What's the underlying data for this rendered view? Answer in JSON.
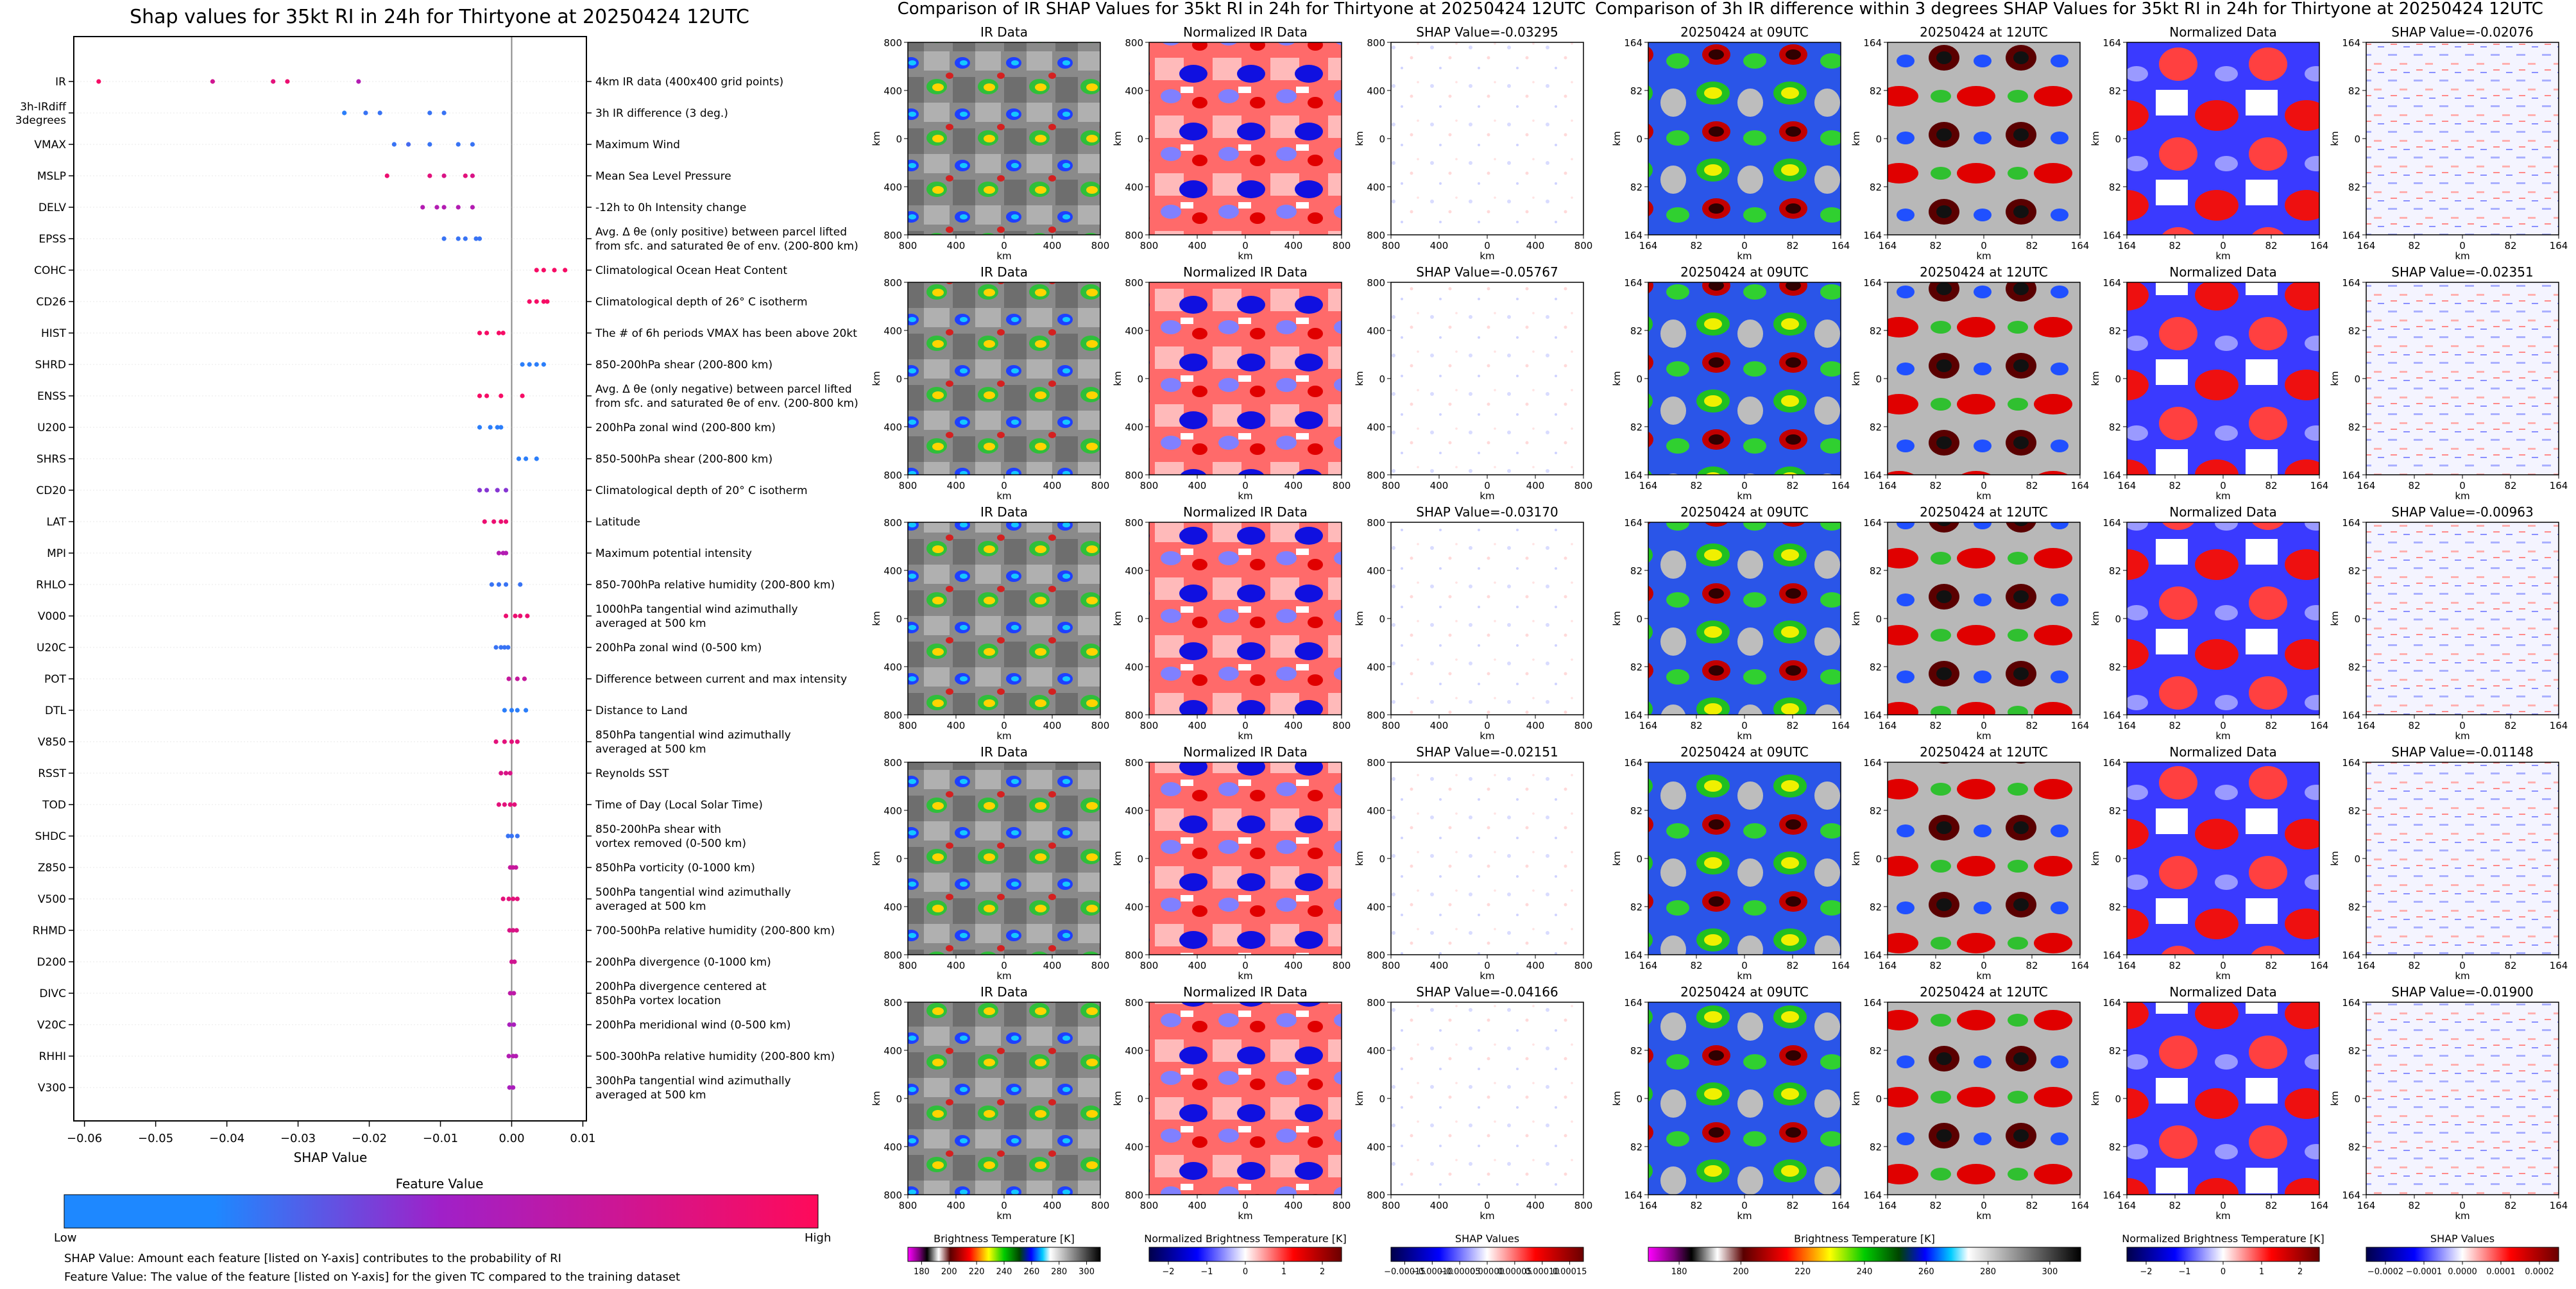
{
  "shap_panel": {
    "title": "Shap values for 35kt RI in 24h for Thirtyone at 20250424 12UTC",
    "xlabel": "SHAP Value",
    "xticks": [
      "−0.06",
      "−0.05",
      "−0.04",
      "−0.03",
      "−0.02",
      "−0.01",
      "0.00",
      "0.01"
    ],
    "colorbar": {
      "title": "Feature Value",
      "low": "Low",
      "high": "High"
    },
    "footnote1": "SHAP Value: Amount each feature [listed on Y-axis] contributes to the probability of RI",
    "footnote2": "Feature Value: The value of the feature [listed on Y-axis] for the given TC compared to the training dataset"
  },
  "ir_section": {
    "title": "Comparison of IR SHAP Values for 35kt RI in 24h for Thirtyone at 20250424 12UTC",
    "col_titles": [
      "IR Data",
      "Normalized IR Data"
    ],
    "shap_titles": [
      "SHAP Value=-0.03295",
      "SHAP Value=-0.05767",
      "SHAP Value=-0.03170",
      "SHAP Value=-0.02151",
      "SHAP Value=-0.04166"
    ],
    "yticks": [
      "800",
      "400",
      "0",
      "400",
      "800"
    ],
    "xticks": [
      "800",
      "400",
      "0",
      "400",
      "800"
    ],
    "axis_label": "km",
    "colorbars": [
      {
        "label": "Brightness Temperature [K]",
        "ticks": [
          "180",
          "200",
          "220",
          "240",
          "260",
          "280",
          "300"
        ]
      },
      {
        "label": "Normalized Brightness Temperature [K]",
        "ticks": [
          "−2",
          "−1",
          "0",
          "1",
          "2"
        ]
      },
      {
        "label": "SHAP Values",
        "ticks": [
          "−0.00015",
          "−0.00010",
          "−0.00005",
          "0.00000",
          "0.00005",
          "0.00010",
          "0.00015"
        ]
      }
    ]
  },
  "diff_section": {
    "title": "Comparison of 3h IR difference within 3 degrees SHAP Values for 35kt RI in 24h for Thirtyone at 20250424 12UTC",
    "col_titles": [
      "20250424 at 09UTC",
      "20250424 at 12UTC",
      "Normalized Data"
    ],
    "shap_titles": [
      "SHAP Value=-0.02076",
      "SHAP Value=-0.02351",
      "SHAP Value=-0.00963",
      "SHAP Value=-0.01148",
      "SHAP Value=-0.01900"
    ],
    "yticks": [
      "164",
      "82",
      "0",
      "82",
      "164"
    ],
    "xticks": [
      "164",
      "82",
      "0",
      "82",
      "164"
    ],
    "axis_label": "km",
    "colorbars": [
      {
        "label": "Brightness Temperature [K]",
        "ticks": [
          "180",
          "200",
          "220",
          "240",
          "260",
          "280",
          "300"
        ]
      },
      {
        "label": "Normalized Brightness Temperature [K]",
        "ticks": [
          "−2",
          "−1",
          "0",
          "1",
          "2"
        ]
      },
      {
        "label": "SHAP Values",
        "ticks": [
          "−0.0002",
          "−0.0001",
          "0.0000",
          "0.0001",
          "0.0002"
        ]
      }
    ]
  },
  "colors": {
    "low": "#1e88ff",
    "high": "#ff0a5a",
    "mid": "#a020c8",
    "zero_line": "#888888"
  },
  "chart_data": {
    "type": "scatter",
    "title": "Shap values for 35kt RI in 24h for Thirtyone at 20250424 12UTC",
    "xlabel": "SHAP Value",
    "ylabel": "",
    "xlim": [
      -0.0615,
      0.0105
    ],
    "features": [
      {
        "code": "IR",
        "desc": [
          "4km IR data (400x400 grid points)"
        ],
        "points": [
          [
            -0.058,
            0.95
          ],
          [
            -0.042,
            0.75
          ],
          [
            -0.0335,
            0.85
          ],
          [
            -0.0315,
            0.9
          ],
          [
            -0.0215,
            0.6
          ]
        ]
      },
      {
        "code": [
          "3h-IRdiff",
          "3degrees"
        ],
        "desc": [
          "3h IR difference (3 deg.)"
        ],
        "points": [
          [
            -0.0235,
            0.05
          ],
          [
            -0.0205,
            0.1
          ],
          [
            -0.0185,
            0.1
          ],
          [
            -0.0115,
            0.1
          ],
          [
            -0.0095,
            0.1
          ]
        ]
      },
      {
        "code": "VMAX",
        "desc": [
          "Maximum Wind"
        ],
        "points": [
          [
            -0.0165,
            0.1
          ],
          [
            -0.0145,
            0.15
          ],
          [
            -0.0115,
            0.1
          ],
          [
            -0.0075,
            0.1
          ],
          [
            -0.0055,
            0.1
          ]
        ]
      },
      {
        "code": "MSLP",
        "desc": [
          "Mean Sea Level Pressure"
        ],
        "points": [
          [
            -0.0175,
            0.9
          ],
          [
            -0.0115,
            0.85
          ],
          [
            -0.0095,
            0.8
          ],
          [
            -0.0065,
            0.85
          ],
          [
            -0.0055,
            0.8
          ]
        ]
      },
      {
        "code": "DELV",
        "desc": [
          "-12h to 0h Intensity change"
        ],
        "points": [
          [
            -0.0125,
            0.6
          ],
          [
            -0.0105,
            0.6
          ],
          [
            -0.0095,
            0.6
          ],
          [
            -0.0075,
            0.6
          ],
          [
            -0.0055,
            0.6
          ]
        ]
      },
      {
        "code": "EPSS",
        "desc": [
          "Avg. Δ θe (only positive) between parcel lifted",
          "from sfc. and saturated θe of env. (200-800 km)"
        ],
        "points": [
          [
            -0.0095,
            0.1
          ],
          [
            -0.0075,
            0.1
          ],
          [
            -0.0065,
            0.1
          ],
          [
            -0.005,
            0.1
          ],
          [
            -0.0045,
            0.1
          ]
        ]
      },
      {
        "code": "COHC",
        "desc": [
          "Climatological Ocean Heat Content"
        ],
        "points": [
          [
            0.0035,
            0.95
          ],
          [
            0.0045,
            0.95
          ],
          [
            0.006,
            0.95
          ],
          [
            0.0075,
            0.95
          ]
        ]
      },
      {
        "code": "CD26",
        "desc": [
          "Climatological depth of 26° C isotherm"
        ],
        "points": [
          [
            0.0025,
            0.95
          ],
          [
            0.0035,
            0.95
          ],
          [
            0.0045,
            0.95
          ],
          [
            0.005,
            0.95
          ]
        ]
      },
      {
        "code": "HIST",
        "desc": [
          "The # of 6h periods VMAX has been above 20kt"
        ],
        "points": [
          [
            -0.0045,
            0.95
          ],
          [
            -0.0035,
            0.95
          ],
          [
            -0.0018,
            0.95
          ],
          [
            -0.0012,
            0.95
          ]
        ]
      },
      {
        "code": "SHRD",
        "desc": [
          "850-200hPa shear (200-800 km)"
        ],
        "points": [
          [
            0.0015,
            0.05
          ],
          [
            0.0025,
            0.05
          ],
          [
            0.0035,
            0.05
          ],
          [
            0.0045,
            0.05
          ]
        ]
      },
      {
        "code": "ENSS",
        "desc": [
          "Avg. Δ θe (only negative) between parcel lifted",
          "from sfc. and saturated θe of env. (200-800 km)"
        ],
        "points": [
          [
            -0.0045,
            0.95
          ],
          [
            -0.0035,
            0.95
          ],
          [
            -0.0015,
            0.95
          ],
          [
            0.0015,
            0.95
          ]
        ]
      },
      {
        "code": "U200",
        "desc": [
          "200hPa zonal wind (200-800 km)"
        ],
        "points": [
          [
            -0.0045,
            0.05
          ],
          [
            -0.003,
            0.05
          ],
          [
            -0.002,
            0.05
          ],
          [
            -0.0015,
            0.05
          ]
        ]
      },
      {
        "code": "SHRS",
        "desc": [
          "850-500hPa shear (200-800 km)"
        ],
        "points": [
          [
            0.001,
            0.05
          ],
          [
            0.002,
            0.05
          ],
          [
            0.0035,
            0.05
          ]
        ]
      },
      {
        "code": "CD20",
        "desc": [
          "Climatological depth of 20° C isotherm"
        ],
        "points": [
          [
            -0.0045,
            0.4
          ],
          [
            -0.0035,
            0.4
          ],
          [
            -0.002,
            0.4
          ],
          [
            -0.0008,
            0.4
          ]
        ]
      },
      {
        "code": "LAT",
        "desc": [
          "Latitude"
        ],
        "points": [
          [
            -0.0038,
            0.9
          ],
          [
            -0.0025,
            0.9
          ],
          [
            -0.0015,
            0.9
          ],
          [
            -0.0008,
            0.9
          ]
        ]
      },
      {
        "code": "MPI",
        "desc": [
          "Maximum potential intensity"
        ],
        "points": [
          [
            -0.0018,
            0.6
          ],
          [
            -0.0012,
            0.6
          ],
          [
            -0.0008,
            0.6
          ]
        ]
      },
      {
        "code": "RHLO",
        "desc": [
          "850-700hPa relative humidity (200-800 km)"
        ],
        "points": [
          [
            -0.0028,
            0.1
          ],
          [
            -0.0018,
            0.1
          ],
          [
            -0.0008,
            0.1
          ],
          [
            0.0012,
            0.1
          ]
        ]
      },
      {
        "code": "V000",
        "desc": [
          "1000hPa tangential wind azimuthally",
          "averaged at 500 km"
        ],
        "points": [
          [
            -0.0008,
            0.9
          ],
          [
            0.0005,
            0.9
          ],
          [
            0.0012,
            0.9
          ],
          [
            0.0022,
            0.9
          ]
        ]
      },
      {
        "code": "U20C",
        "desc": [
          "200hPa zonal wind (0-500 km)"
        ],
        "points": [
          [
            -0.0022,
            0.1
          ],
          [
            -0.0015,
            0.1
          ],
          [
            -0.001,
            0.1
          ],
          [
            -0.0005,
            0.1
          ]
        ]
      },
      {
        "code": "POT",
        "desc": [
          "Difference between current and max intensity"
        ],
        "points": [
          [
            -0.0004,
            0.7
          ],
          [
            0.0008,
            0.7
          ],
          [
            0.0018,
            0.7
          ]
        ]
      },
      {
        "code": "DTL",
        "desc": [
          "Distance to Land"
        ],
        "points": [
          [
            -0.001,
            0.05
          ],
          [
            0.0,
            0.05
          ],
          [
            0.0008,
            0.05
          ],
          [
            0.002,
            0.05
          ]
        ]
      },
      {
        "code": "V850",
        "desc": [
          "850hPa tangential wind azimuthally",
          "averaged at 500 km"
        ],
        "points": [
          [
            -0.0022,
            0.85
          ],
          [
            -0.001,
            0.85
          ],
          [
            0.0,
            0.85
          ],
          [
            0.0008,
            0.85
          ]
        ]
      },
      {
        "code": "RSST",
        "desc": [
          "Reynolds SST"
        ],
        "points": [
          [
            -0.0015,
            0.8
          ],
          [
            -0.0008,
            0.8
          ],
          [
            -0.0002,
            0.8
          ]
        ]
      },
      {
        "code": "TOD",
        "desc": [
          "Time of Day (Local Solar Time)"
        ],
        "points": [
          [
            -0.0018,
            0.85
          ],
          [
            -0.001,
            0.85
          ],
          [
            -0.0002,
            0.85
          ],
          [
            0.0004,
            0.85
          ]
        ]
      },
      {
        "code": "SHDC",
        "desc": [
          "850-200hPa shear with",
          "vortex removed (0-500 km)"
        ],
        "points": [
          [
            -0.0005,
            0.1
          ],
          [
            0.0,
            0.1
          ],
          [
            0.0008,
            0.1
          ]
        ]
      },
      {
        "code": "Z850",
        "desc": [
          "850hPa vorticity (0-1000 km)"
        ],
        "points": [
          [
            -0.0002,
            0.7
          ],
          [
            0.0002,
            0.7
          ],
          [
            0.0006,
            0.7
          ]
        ]
      },
      {
        "code": "V500",
        "desc": [
          "500hPa tangential wind azimuthally",
          "averaged at 500 km"
        ],
        "points": [
          [
            -0.0012,
            0.85
          ],
          [
            -0.0004,
            0.85
          ],
          [
            0.0002,
            0.85
          ],
          [
            0.0008,
            0.85
          ]
        ]
      },
      {
        "code": "RHMD",
        "desc": [
          "700-500hPa relative humidity (200-800 km)"
        ],
        "points": [
          [
            -0.0003,
            0.8
          ],
          [
            0.0002,
            0.8
          ],
          [
            0.0007,
            0.8
          ]
        ]
      },
      {
        "code": "D200",
        "desc": [
          "200hPa divergence (0-1000 km)"
        ],
        "points": [
          [
            0.0,
            0.75
          ],
          [
            0.0004,
            0.75
          ]
        ]
      },
      {
        "code": "DIVC",
        "desc": [
          "200hPa divergence centered at",
          "850hPa vortex location"
        ],
        "points": [
          [
            -0.0002,
            0.65
          ],
          [
            0.0003,
            0.65
          ]
        ]
      },
      {
        "code": "V20C",
        "desc": [
          "200hPa meridional wind (0-500 km)"
        ],
        "points": [
          [
            -0.0003,
            0.55
          ],
          [
            0.0003,
            0.55
          ]
        ]
      },
      {
        "code": "RHHI",
        "desc": [
          "500-300hPa relative humidity (200-800 km)"
        ],
        "points": [
          [
            -0.0004,
            0.6
          ],
          [
            0.0002,
            0.6
          ],
          [
            0.0006,
            0.6
          ]
        ]
      },
      {
        "code": "V300",
        "desc": [
          "300hPa tangential wind azimuthally",
          "averaged at 500 km"
        ],
        "points": [
          [
            -0.0003,
            0.55
          ],
          [
            0.0002,
            0.55
          ]
        ]
      }
    ],
    "image_grids": [
      {
        "section": "IR",
        "rows": 5,
        "columns": [
          "IR Data",
          "Normalized IR Data",
          "SHAP"
        ],
        "shap_values": [
          -0.03295,
          -0.05767,
          -0.0317,
          -0.02151,
          -0.04166
        ],
        "axis_range_km": [
          -800,
          800
        ]
      },
      {
        "section": "3h IR difference",
        "rows": 5,
        "columns": [
          "20250424 at 09UTC",
          "20250424 at 12UTC",
          "Normalized Data",
          "SHAP"
        ],
        "shap_values": [
          -0.02076,
          -0.02351,
          -0.00963,
          -0.01148,
          -0.019
        ],
        "axis_range_km": [
          -164,
          164
        ]
      }
    ]
  }
}
